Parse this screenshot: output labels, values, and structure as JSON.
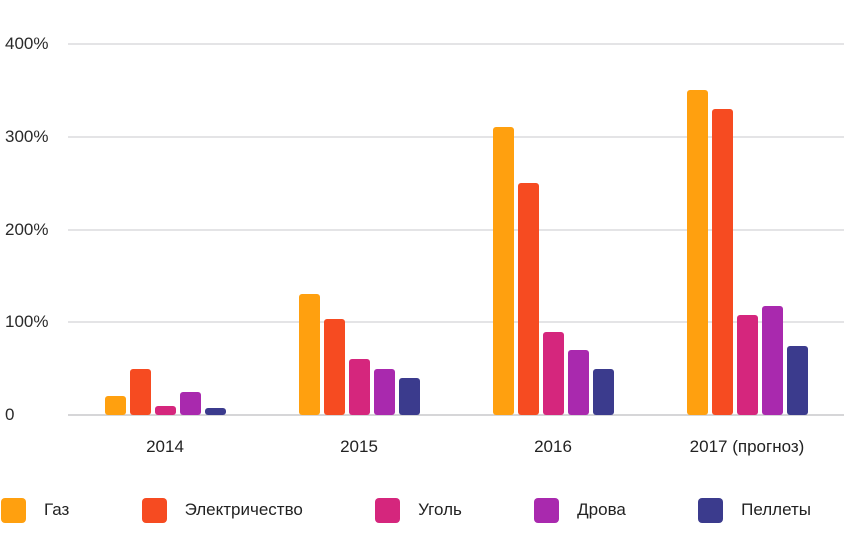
{
  "chart_data": {
    "type": "bar",
    "title": "",
    "categories": [
      "2014",
      "2015",
      "2016",
      "2017 (прогноз)"
    ],
    "category_ids": [
      "2014",
      "2015",
      "2016",
      "2017-forecast"
    ],
    "series": [
      {
        "id": "gas",
        "name": "Газ",
        "color": "#FFA00F",
        "values": [
          20,
          130,
          310,
          350
        ]
      },
      {
        "id": "electricity",
        "name": "Электричество",
        "color": "#F64B21",
        "values": [
          50,
          103,
          250,
          330
        ]
      },
      {
        "id": "coal",
        "name": "Уголь",
        "color": "#D5267D",
        "values": [
          10,
          60,
          90,
          108
        ]
      },
      {
        "id": "wood",
        "name": "Дрова",
        "color": "#A929AE",
        "values": [
          25,
          50,
          70,
          118
        ]
      },
      {
        "id": "pellets",
        "name": "Пеллеты",
        "color": "#3B3B8D",
        "values": [
          8,
          40,
          50,
          74
        ]
      }
    ],
    "y_axis": {
      "unit": "%",
      "min": 0,
      "max": 400,
      "tick_values": [
        400,
        300,
        200,
        100,
        0
      ],
      "tick_labels": [
        "400%",
        "300%",
        "200%",
        "100%",
        "0"
      ]
    },
    "grid": true,
    "legend_position": "bottom"
  },
  "colors": {
    "background": "#FFFFFF",
    "gridline": "#E4E4E6",
    "baseline": "#D6D6D8",
    "text": "#222222"
  }
}
